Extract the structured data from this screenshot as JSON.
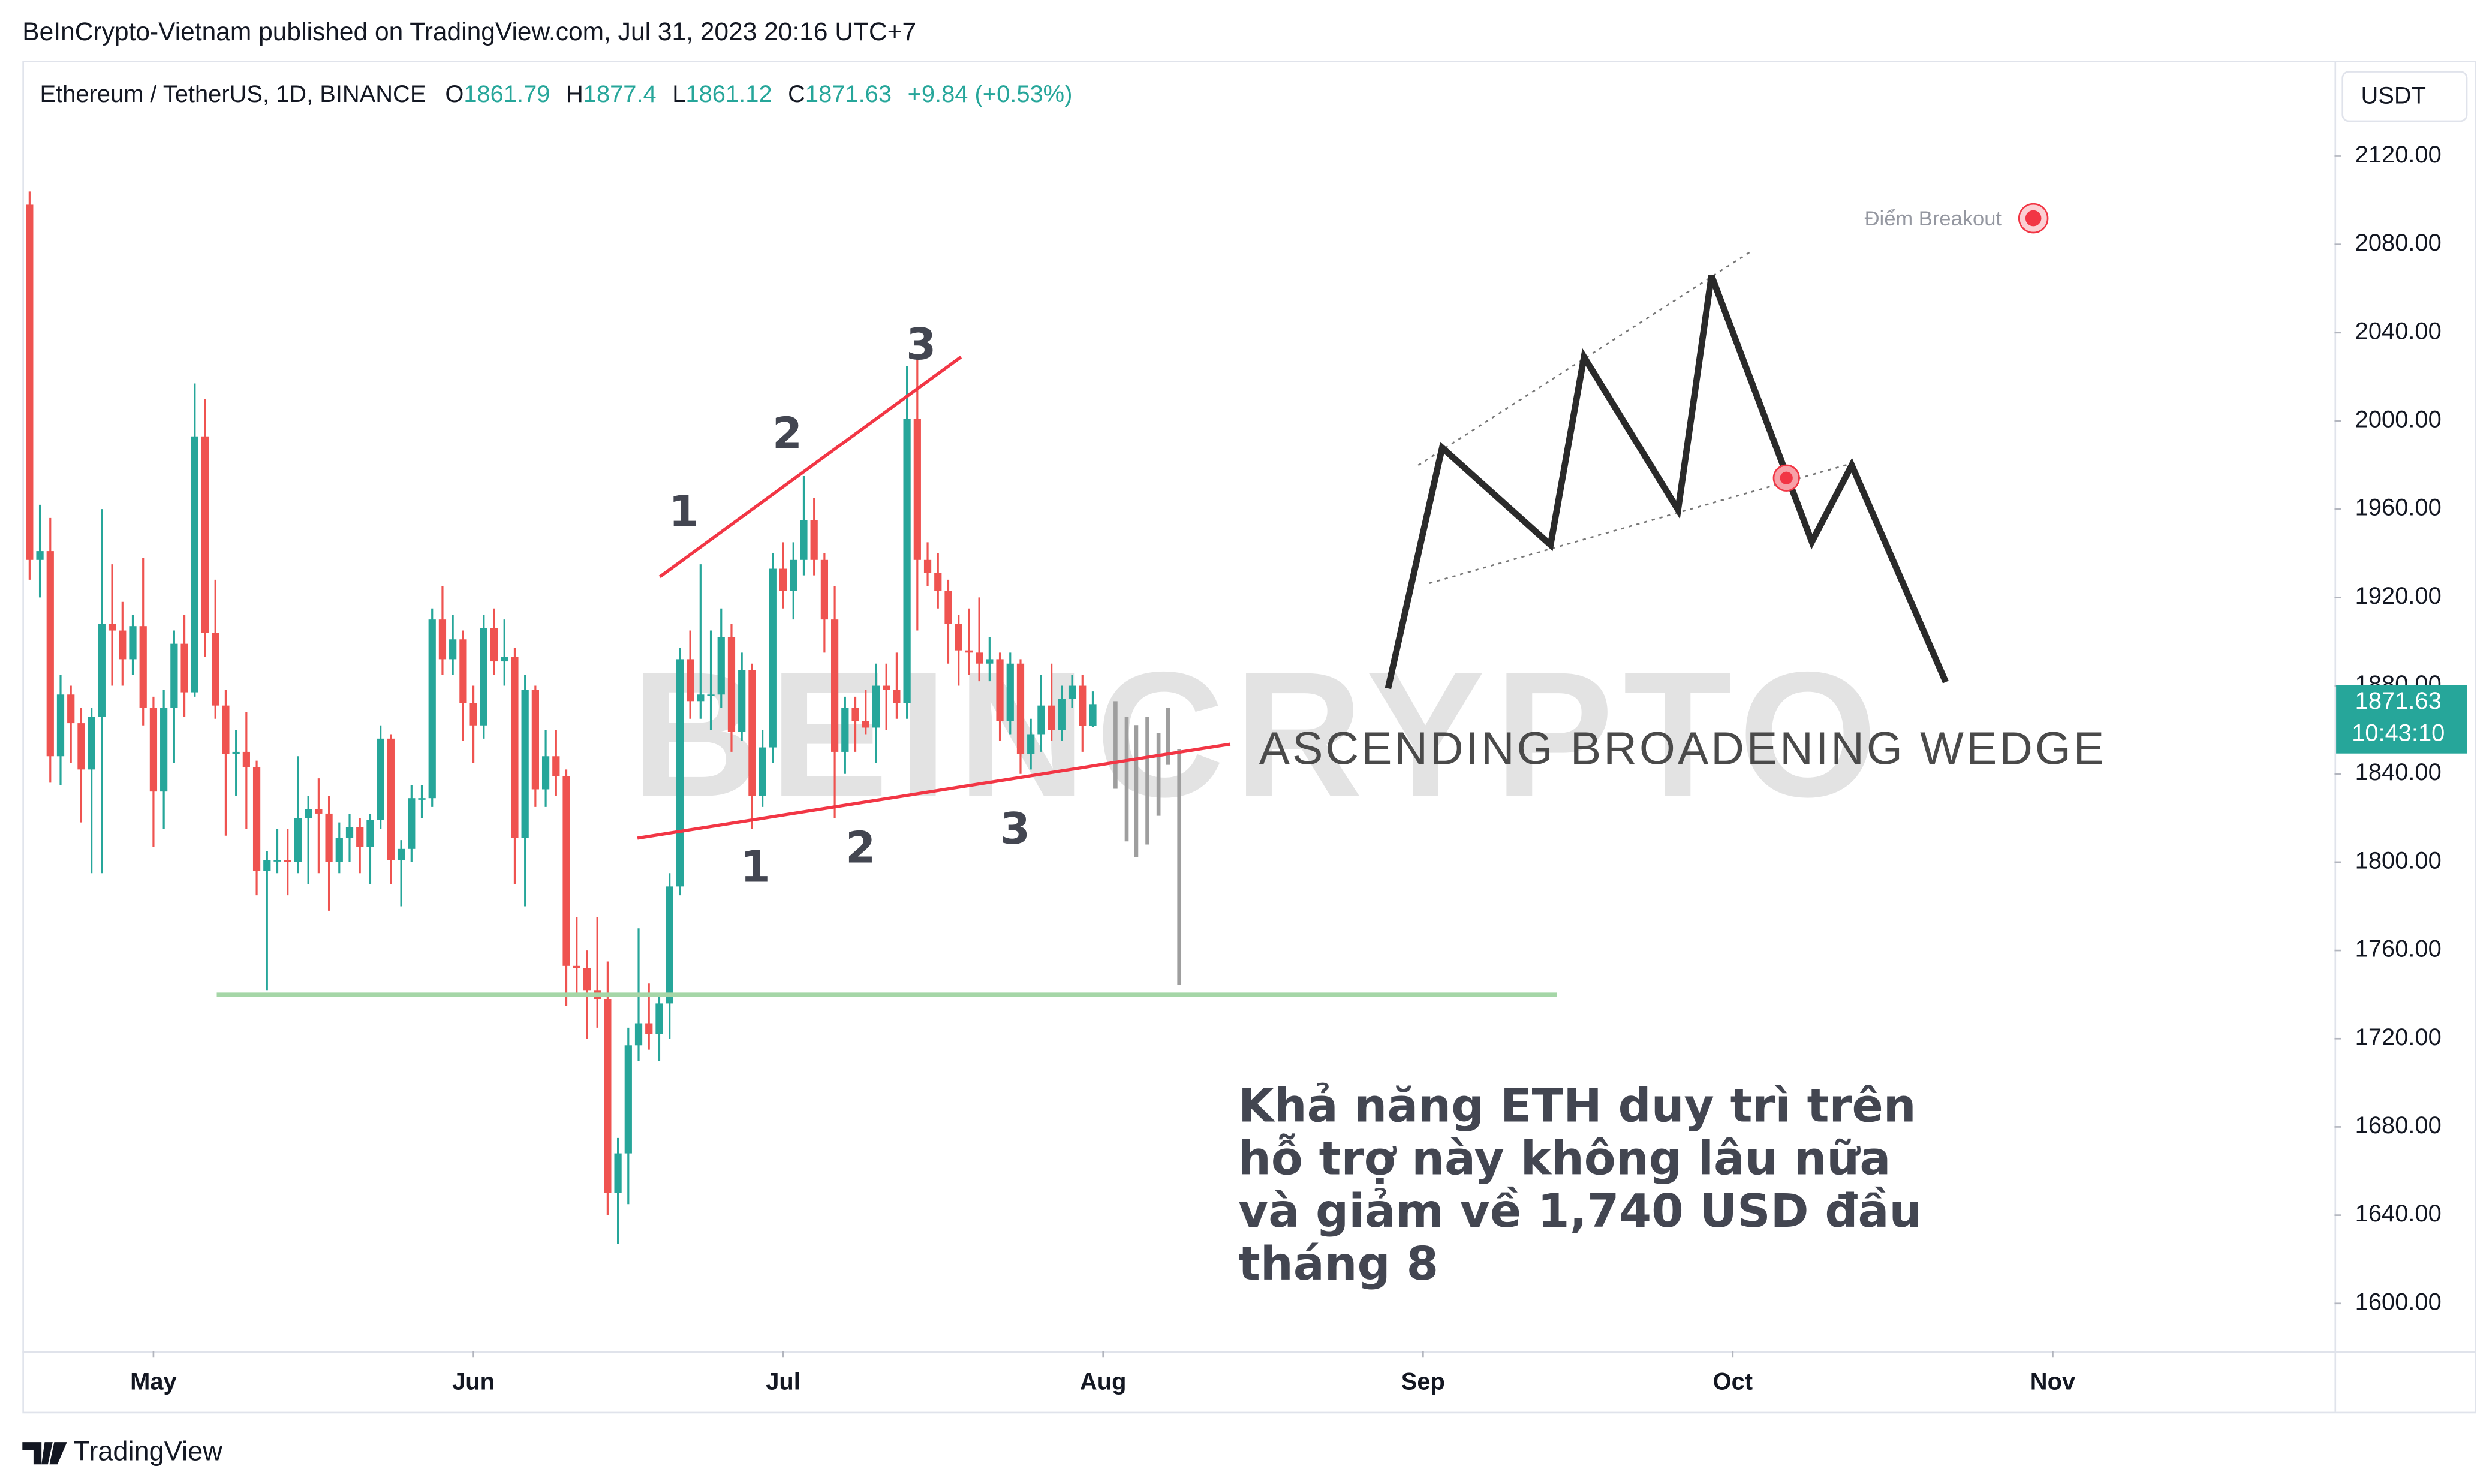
{
  "header": "BeInCrypto-Vietnam published on TradingView.com, Jul 31, 2023 20:16 UTC+7",
  "footer": "TradingView",
  "chart_data": {
    "type": "candlestick",
    "symbol": "Ethereum / TetherUS, 1D, BINANCE",
    "ohlc_letters": [
      "O",
      "H",
      "L",
      "C"
    ],
    "change": "+9.84 (+0.53%)",
    "currency": "USDT",
    "countdown": "10:43:10",
    "watermark": "BEINCRYPTO",
    "up_color": "#26a69a",
    "down_color": "#ef5350",
    "support_level": 1740,
    "support_color": "#a5d6a7",
    "annotations": {
      "upper_points": [
        "1",
        "2",
        "3"
      ],
      "lower_points": [
        "1",
        "2",
        "3"
      ],
      "pattern": "ASCENDING BROADENING WEDGE",
      "breakout": "Điểm Breakout",
      "note": [
        "Khả năng ETH duy trì trên",
        "hỗ trợ này không lâu nữa",
        "và giảm về 1,740 USD đầu",
        "tháng 8"
      ]
    },
    "xlim": [
      -0.7,
      223.3
    ],
    "xticks": [
      {
        "value": 12,
        "label": "May"
      },
      {
        "value": 43,
        "label": "Jun"
      },
      {
        "value": 73,
        "label": "Jul"
      },
      {
        "value": 104,
        "label": "Aug"
      },
      {
        "value": 135,
        "label": "Sep"
      },
      {
        "value": 165,
        "label": "Oct"
      },
      {
        "value": 196,
        "label": "Nov"
      }
    ],
    "ylim": [
      1578.3,
      2161.9
    ],
    "yticks": [
      {
        "value": 1600,
        "label": "1600.00"
      },
      {
        "value": 1640,
        "label": "1640.00"
      },
      {
        "value": 1680,
        "label": "1680.00"
      },
      {
        "value": 1720,
        "label": "1720.00"
      },
      {
        "value": 1760,
        "label": "1760.00"
      },
      {
        "value": 1800,
        "label": "1800.00"
      },
      {
        "value": 1840,
        "label": "1840.00"
      },
      {
        "value": 1880,
        "label": "1880.00"
      },
      {
        "value": 1920,
        "label": "1920.00"
      },
      {
        "value": 1960,
        "label": "1960.00"
      },
      {
        "value": 2000,
        "label": "2000.00"
      },
      {
        "value": 2040,
        "label": "2040.00"
      },
      {
        "value": 2080,
        "label": "2080.00"
      },
      {
        "value": 2120,
        "label": "2120.00"
      }
    ],
    "ohlc": [
      [
        2098,
        2104,
        1928,
        1937
      ],
      [
        1937,
        1962,
        1920,
        1941
      ],
      [
        1941,
        1956,
        1836,
        1848
      ],
      [
        1848,
        1885,
        1835,
        1876
      ],
      [
        1876,
        1880,
        1845,
        1863
      ],
      [
        1863,
        1870,
        1818,
        1842
      ],
      [
        1842,
        1870,
        1795,
        1866
      ],
      [
        1866,
        1960,
        1795,
        1908
      ],
      [
        1908,
        1935,
        1880,
        1905
      ],
      [
        1905,
        1918,
        1880,
        1892
      ],
      [
        1892,
        1912,
        1885,
        1907
      ],
      [
        1907,
        1938,
        1862,
        1870
      ],
      [
        1870,
        1875,
        1807,
        1832
      ],
      [
        1832,
        1878,
        1815,
        1870
      ],
      [
        1870,
        1905,
        1845,
        1899
      ],
      [
        1899,
        1912,
        1866,
        1877
      ],
      [
        1877,
        2017,
        1875,
        1993
      ],
      [
        1993,
        2010,
        1893,
        1904
      ],
      [
        1904,
        1928,
        1865,
        1871
      ],
      [
        1871,
        1878,
        1812,
        1849
      ],
      [
        1849,
        1860,
        1830,
        1850
      ],
      [
        1850,
        1868,
        1815,
        1843
      ],
      [
        1843,
        1846,
        1785,
        1796
      ],
      [
        1796,
        1805,
        1742,
        1801
      ],
      [
        1801,
        1815,
        1795,
        1801
      ],
      [
        1801,
        1815,
        1785,
        1800
      ],
      [
        1800,
        1848,
        1795,
        1820
      ],
      [
        1820,
        1830,
        1790,
        1824
      ],
      [
        1824,
        1838,
        1795,
        1822
      ],
      [
        1822,
        1830,
        1778,
        1800
      ],
      [
        1800,
        1818,
        1795,
        1811
      ],
      [
        1811,
        1822,
        1800,
        1816
      ],
      [
        1816,
        1820,
        1795,
        1807
      ],
      [
        1807,
        1822,
        1790,
        1819
      ],
      [
        1819,
        1862,
        1815,
        1856
      ],
      [
        1856,
        1858,
        1790,
        1801
      ],
      [
        1801,
        1810,
        1780,
        1806
      ],
      [
        1806,
        1835,
        1800,
        1829
      ],
      [
        1829,
        1835,
        1820,
        1829
      ],
      [
        1829,
        1915,
        1825,
        1910
      ],
      [
        1910,
        1925,
        1885,
        1892
      ],
      [
        1892,
        1912,
        1885,
        1901
      ],
      [
        1901,
        1905,
        1855,
        1872
      ],
      [
        1872,
        1880,
        1845,
        1862
      ],
      [
        1862,
        1912,
        1856,
        1906
      ],
      [
        1906,
        1915,
        1885,
        1891
      ],
      [
        1891,
        1910,
        1880,
        1893
      ],
      [
        1893,
        1897,
        1790,
        1811
      ],
      [
        1811,
        1885,
        1780,
        1878
      ],
      [
        1878,
        1880,
        1825,
        1833
      ],
      [
        1833,
        1860,
        1825,
        1848
      ],
      [
        1848,
        1860,
        1830,
        1839
      ],
      [
        1839,
        1842,
        1735,
        1753
      ],
      [
        1753,
        1775,
        1740,
        1752
      ],
      [
        1752,
        1760,
        1720,
        1742
      ],
      [
        1742,
        1775,
        1725,
        1738
      ],
      [
        1738,
        1755,
        1640,
        1650
      ],
      [
        1650,
        1675,
        1627,
        1668
      ],
      [
        1668,
        1725,
        1645,
        1717
      ],
      [
        1717,
        1770,
        1710,
        1727
      ],
      [
        1727,
        1745,
        1715,
        1722
      ],
      [
        1722,
        1740,
        1710,
        1736
      ],
      [
        1736,
        1795,
        1720,
        1789
      ],
      [
        1789,
        1897,
        1785,
        1892
      ],
      [
        1892,
        1905,
        1865,
        1873
      ],
      [
        1873,
        1935,
        1865,
        1876
      ],
      [
        1876,
        1905,
        1860,
        1876
      ],
      [
        1876,
        1915,
        1870,
        1902
      ],
      [
        1902,
        1908,
        1850,
        1859
      ],
      [
        1859,
        1895,
        1855,
        1887
      ],
      [
        1887,
        1890,
        1815,
        1830
      ],
      [
        1830,
        1860,
        1825,
        1852
      ],
      [
        1852,
        1940,
        1845,
        1933
      ],
      [
        1933,
        1945,
        1915,
        1923
      ],
      [
        1923,
        1945,
        1910,
        1937
      ],
      [
        1937,
        1975,
        1930,
        1955
      ],
      [
        1955,
        1965,
        1930,
        1937
      ],
      [
        1937,
        1940,
        1895,
        1910
      ],
      [
        1910,
        1925,
        1820,
        1850
      ],
      [
        1850,
        1875,
        1840,
        1870
      ],
      [
        1870,
        1875,
        1850,
        1864
      ],
      [
        1864,
        1878,
        1858,
        1861
      ],
      [
        1861,
        1890,
        1845,
        1880
      ],
      [
        1880,
        1890,
        1860,
        1878
      ],
      [
        1878,
        1895,
        1865,
        1872
      ],
      [
        1872,
        2025,
        1865,
        2001
      ],
      [
        2001,
        2030,
        1905,
        1937
      ],
      [
        1937,
        1945,
        1925,
        1931
      ],
      [
        1931,
        1940,
        1915,
        1923
      ],
      [
        1923,
        1928,
        1890,
        1908
      ],
      [
        1908,
        1912,
        1880,
        1896
      ],
      [
        1896,
        1915,
        1885,
        1895
      ],
      [
        1895,
        1920,
        1882,
        1890
      ],
      [
        1890,
        1902,
        1882,
        1892
      ],
      [
        1892,
        1895,
        1855,
        1864
      ],
      [
        1864,
        1895,
        1858,
        1890
      ],
      [
        1890,
        1892,
        1840,
        1849
      ],
      [
        1849,
        1865,
        1842,
        1858
      ],
      [
        1858,
        1885,
        1850,
        1871
      ],
      [
        1871,
        1890,
        1855,
        1860
      ],
      [
        1860,
        1880,
        1855,
        1874
      ],
      [
        1874,
        1885,
        1870,
        1880
      ],
      [
        1880,
        1885,
        1850,
        1861.79
      ],
      [
        1861.79,
        1877.4,
        1861.12,
        1871.63
      ]
    ]
  }
}
